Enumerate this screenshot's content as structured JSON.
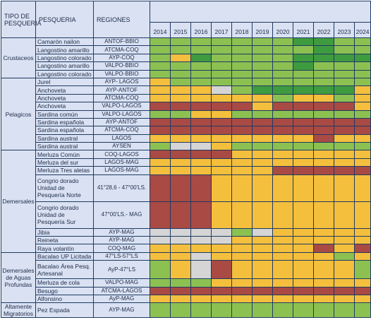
{
  "headers": {
    "tipo": "TIPO DE PESQUERIA",
    "pesqueria": "PESQUERIA",
    "regiones": "REGIONES",
    "years": [
      "2014",
      "2015",
      "2016",
      "2017",
      "2018",
      "2019",
      "2020",
      "2021",
      "2022",
      "2023",
      "2024"
    ]
  },
  "legend_colors": {
    "g": "#8cc152",
    "dg": "#3f9b3f",
    "y": "#f4bf3c",
    "r": "#a94a44",
    "w": "#d5d5d5"
  },
  "groups": [
    {
      "tipo": "Crustaceos",
      "rows": [
        {
          "pesqueria": "Camarón nailon",
          "region": "ANTOF-BBIO",
          "status": [
            "g",
            "g",
            "g",
            "g",
            "g",
            "g",
            "g",
            "dg",
            "dg",
            "g",
            "g"
          ]
        },
        {
          "pesqueria": "Langostino amarillo",
          "region": "ATCMA-COQ",
          "status": [
            "g",
            "g",
            "g",
            "g",
            "g",
            "g",
            "g",
            "g",
            "dg",
            "g",
            "g"
          ]
        },
        {
          "pesqueria": "Langostino colorado",
          "region": "AYP-COQ",
          "status": [
            "g",
            "y",
            "dg",
            "g",
            "g",
            "g",
            "g",
            "dg",
            "dg",
            "dg",
            "dg"
          ]
        },
        {
          "pesqueria": "Langostino amarillo",
          "region": "VALPO-BBIO",
          "status": [
            "g",
            "g",
            "g",
            "g",
            "g",
            "g",
            "g",
            "dg",
            "g",
            "g",
            "g"
          ]
        },
        {
          "pesqueria": "Langostino colorado",
          "region": "VALPO-BBIO",
          "status": [
            "g",
            "g",
            "g",
            "g",
            "g",
            "g",
            "g",
            "g",
            "g",
            "g",
            "g"
          ]
        }
      ]
    },
    {
      "tipo": "Pelagicos",
      "rows": [
        {
          "pesqueria": "Jurel",
          "region": "AYP- LAGOS",
          "status": [
            "y",
            "g",
            "g",
            "g",
            "g",
            "g",
            "g",
            "g",
            "g",
            "g",
            "g"
          ]
        },
        {
          "pesqueria": "Anchoveta",
          "region": "AYP-ANTOF",
          "status": [
            "y",
            "y",
            "y",
            "w",
            "g",
            "dg",
            "dg",
            "dg",
            "dg",
            "dg",
            "y"
          ]
        },
        {
          "pesqueria": "Anchoveta",
          "region": "ATCMA-COQ",
          "status": [
            "y",
            "y",
            "y",
            "y",
            "y",
            "y",
            "g",
            "y",
            "y",
            "g",
            "y"
          ]
        },
        {
          "pesqueria": "Anchoveta",
          "region": "VALPO-LAGOS",
          "status": [
            "r",
            "r",
            "r",
            "r",
            "r",
            "y",
            "r",
            "r",
            "r",
            "r",
            "y"
          ]
        },
        {
          "pesqueria": "Sardina común",
          "region": "VALPO-LAGOS",
          "status": [
            "g",
            "g",
            "y",
            "y",
            "g",
            "g",
            "g",
            "g",
            "g",
            "g",
            "g"
          ]
        },
        {
          "pesqueria": "Sardina española",
          "region": "AYP-ANTOF",
          "status": [
            "r",
            "r",
            "r",
            "r",
            "r",
            "r",
            "r",
            "r",
            "r",
            "r",
            "r"
          ]
        },
        {
          "pesqueria": "Sardina española",
          "region": "ATCMA-COQ",
          "status": [
            "r",
            "r",
            "r",
            "r",
            "r",
            "r",
            "r",
            "r",
            "r",
            "r",
            "r"
          ]
        },
        {
          "pesqueria": "Sardina austral",
          "region": "LAGOS",
          "status": [
            "y",
            "y",
            "y",
            "y",
            "y",
            "y",
            "y",
            "y",
            "r",
            "y",
            "y"
          ]
        },
        {
          "pesqueria": "Sardina austral",
          "region": "AYSEN",
          "status": [
            "g",
            "w",
            "w",
            "y",
            "g",
            "g",
            "g",
            "g",
            "g",
            "g",
            "g"
          ]
        }
      ]
    },
    {
      "tipo": "Demersales",
      "rows": [
        {
          "pesqueria": "Merluza Común",
          "region": "COQ-LAGOS",
          "status": [
            "r",
            "r",
            "r",
            "r",
            "y",
            "y",
            "y",
            "y",
            "y",
            "y",
            "y"
          ]
        },
        {
          "pesqueria": "Merluza del sur",
          "region": "LAGOS-MAG",
          "status": [
            "y",
            "y",
            "y",
            "y",
            "y",
            "y",
            "y",
            "y",
            "y",
            "y",
            "y"
          ]
        },
        {
          "pesqueria": "Merluza Tres aletas",
          "region": "LAGOS-MAG",
          "status": [
            "y",
            "y",
            "y",
            "y",
            "y",
            "y",
            "r",
            "r",
            "r",
            "r",
            "r"
          ]
        },
        {
          "pesqueria": "Congrio dorado Unidad de Pesquería Norte",
          "region": "41°28,6 - 47°00'LS.",
          "multi": true,
          "status": [
            "r",
            "r",
            "r",
            "y",
            "y",
            "y",
            "y",
            "y",
            "y",
            "y",
            "y"
          ]
        },
        {
          "pesqueria": "Congrio dorado Unidad de Pesquería Sur",
          "region": "47°00'LS.- MAG",
          "multi": true,
          "status": [
            "r",
            "r",
            "r",
            "y",
            "y",
            "y",
            "y",
            "y",
            "y",
            "y",
            "y"
          ]
        },
        {
          "pesqueria": "Jibia",
          "region": "AYP-MAG",
          "status": [
            "w",
            "w",
            "w",
            "w",
            "g",
            "w",
            "y",
            "y",
            "y",
            "y",
            "y"
          ]
        },
        {
          "pesqueria": "Reineta",
          "region": "AYP-MAG",
          "status": [
            "w",
            "w",
            "w",
            "w",
            "y",
            "y",
            "y",
            "y",
            "y",
            "y",
            "y"
          ]
        },
        {
          "pesqueria": "Raya volantín",
          "region": "COQ-MAG",
          "status": [
            "y",
            "y",
            "y",
            "y",
            "y",
            "y",
            "y",
            "y",
            "r",
            "y",
            "r"
          ]
        }
      ]
    },
    {
      "tipo": "Demersales de Aguas Profundas",
      "rows": [
        {
          "pesqueria": "Bacalao UP Licitada",
          "region": "47°LS-57°LS",
          "status": [
            "y",
            "y",
            "w",
            "y",
            "y",
            "y",
            "y",
            "y",
            "y",
            "g",
            "y"
          ]
        },
        {
          "pesqueria": "Bacalao Área Pesq. Artesanal",
          "region": "AyP-47°LS",
          "multi": true,
          "status": [
            "g",
            "y",
            "w",
            "r",
            "y",
            "y",
            "y",
            "y",
            "y",
            "y",
            "g"
          ]
        },
        {
          "pesqueria": "Merluza de cola",
          "region": "VALPO-MAG",
          "status": [
            "g",
            "g",
            "g",
            "y",
            "y",
            "y",
            "y",
            "y",
            "y",
            "y",
            "y"
          ]
        },
        {
          "pesqueria": "Besugo",
          "region": "ATCMA-LAGOS",
          "status": [
            "r",
            "r",
            "r",
            "r",
            "r",
            "r",
            "r",
            "r",
            "r",
            "r",
            "r"
          ]
        },
        {
          "pesqueria": "Alfonsino",
          "region": "AyP-MAG",
          "status": [
            "y",
            "y",
            "y",
            "y",
            "y",
            "y",
            "y",
            "y",
            "y",
            "y",
            "y"
          ]
        }
      ]
    },
    {
      "tipo": "Altamente Migratorios",
      "rows": [
        {
          "pesqueria": "Pez Espada",
          "region": "AYP-MAG",
          "status": [
            "g",
            "g",
            "g",
            "g",
            "g",
            "g",
            "g",
            "g",
            "g",
            "g",
            "g"
          ]
        }
      ]
    }
  ]
}
